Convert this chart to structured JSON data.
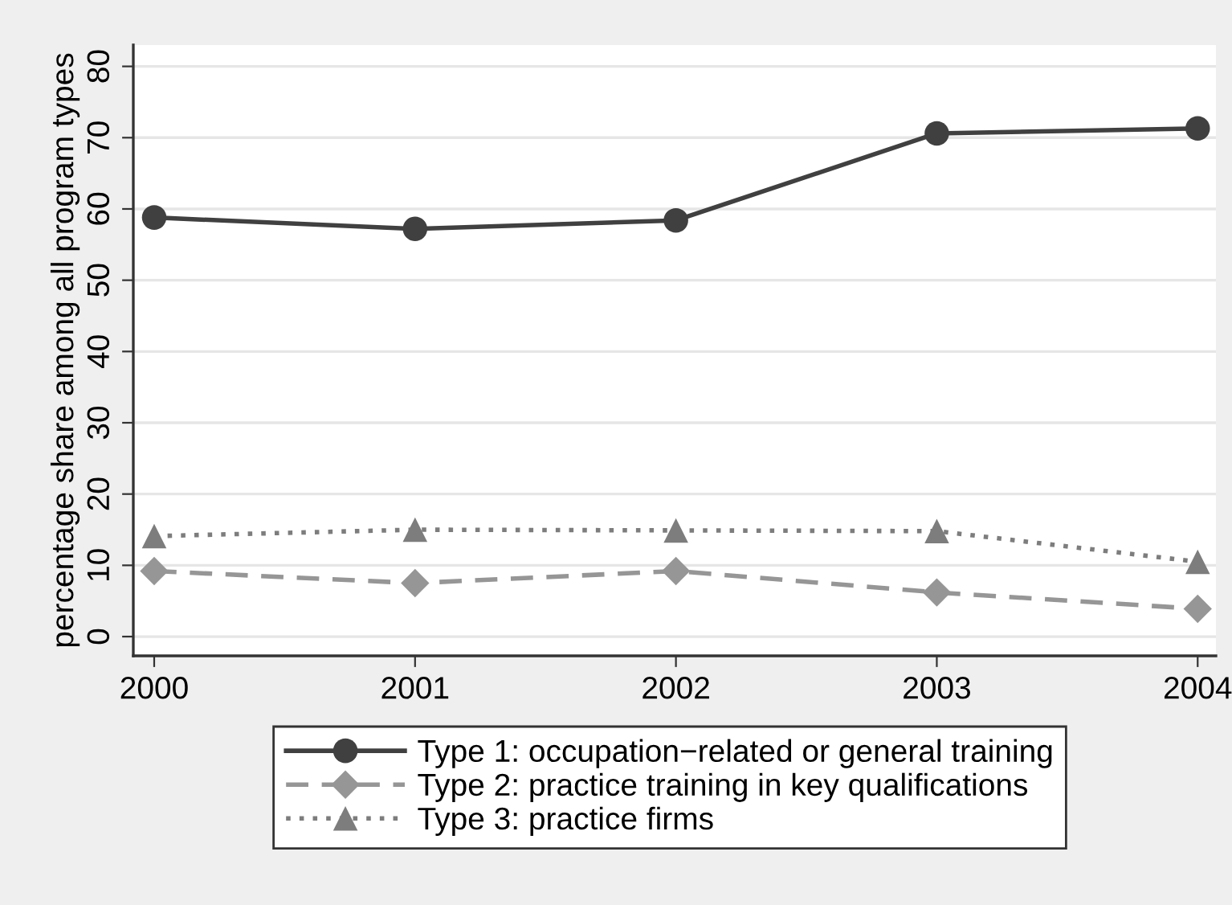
{
  "chart_data": {
    "type": "line",
    "ylabel": "percentage share among all program types",
    "x": [
      2000,
      2001,
      2002,
      2003,
      2004
    ],
    "series": [
      {
        "name": "Type 1: occupation−related or general training",
        "color": "#404040",
        "values": [
          58.8,
          57.2,
          58.4,
          70.6,
          71.3
        ],
        "marker": "circle",
        "line_style": "solid"
      },
      {
        "name": "Type 2: practice training in key qualifications",
        "color": "#969696",
        "values": [
          9.2,
          7.5,
          9.2,
          6.2,
          3.9
        ],
        "marker": "diamond",
        "line_style": "dashed"
      },
      {
        "name": "Type 3: practice firms",
        "color": "#7d7d7d",
        "values": [
          14.1,
          15.0,
          14.9,
          14.8,
          10.5
        ],
        "marker": "triangle",
        "line_style": "dotted"
      }
    ],
    "xlim": [
      1999.92,
      2004.07
    ],
    "xticks": [
      2000,
      2001,
      2002,
      2003,
      2004
    ],
    "ylim": [
      -2.7,
      83
    ],
    "yticks": [
      0,
      10,
      20,
      30,
      40,
      50,
      60,
      70,
      80
    ],
    "grid": "y",
    "legend": "bottom"
  }
}
